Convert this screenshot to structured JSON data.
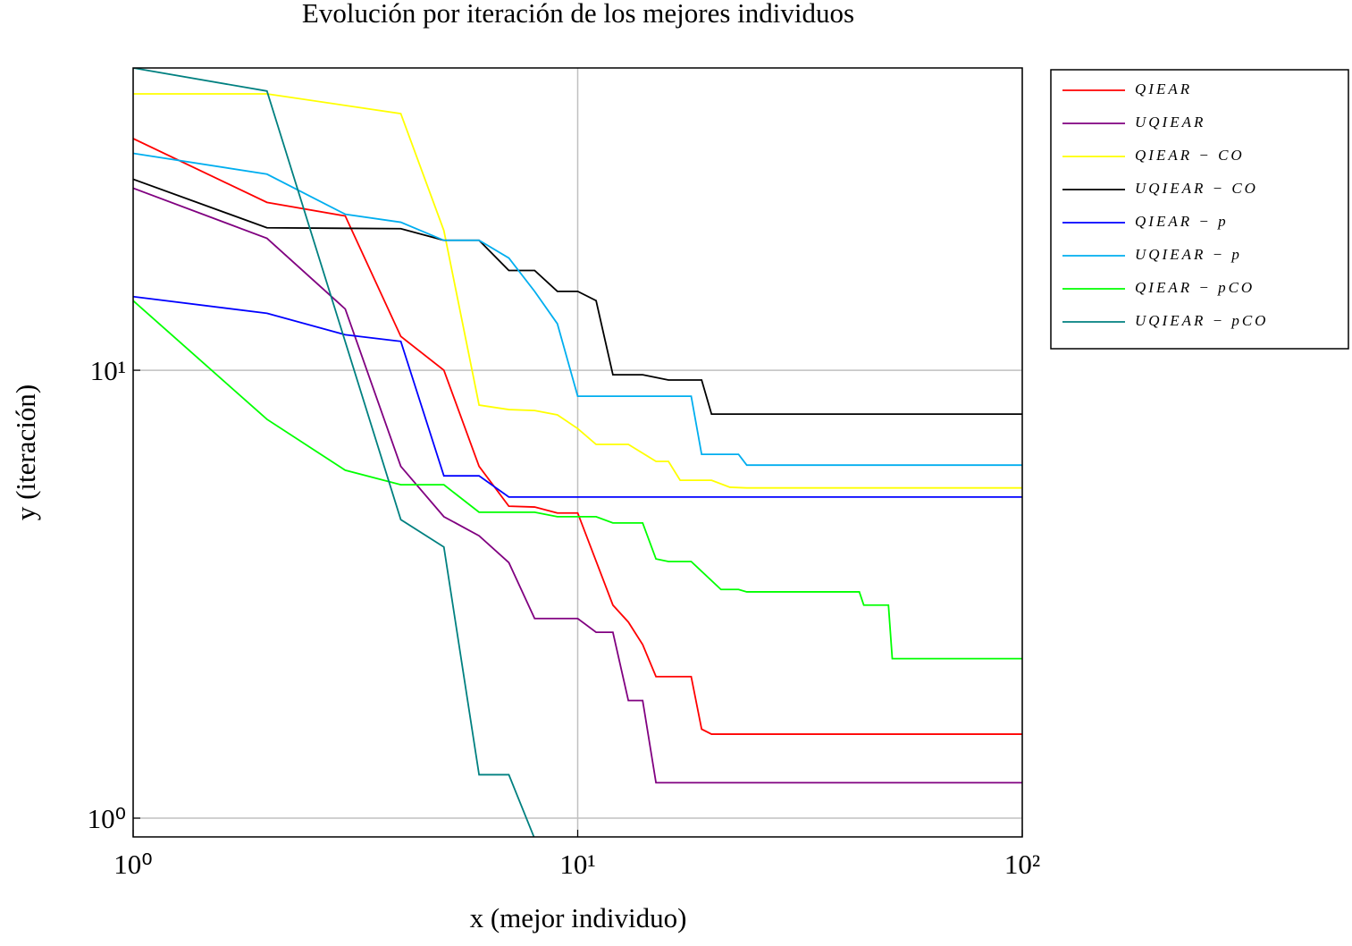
{
  "chart_data": {
    "type": "line",
    "title": "Evolución por iteración de los mejores individuos",
    "x_label": "x (mejor individuo)",
    "y_label": "y (iteración)",
    "x_scale": "log",
    "y_scale": "log",
    "grid": true,
    "legend_position": "outside-right",
    "xlim": [
      1,
      100
    ],
    "ylim": [
      0.908,
      47.3
    ],
    "xticks": [
      {
        "value": 1,
        "label": "10⁰"
      },
      {
        "value": 10,
        "label": "10¹"
      },
      {
        "value": 100,
        "label": "10²"
      }
    ],
    "yticks": [
      {
        "value": 1,
        "label": "10⁰"
      },
      {
        "value": 10,
        "label": "10¹"
      }
    ],
    "series": [
      {
        "name": "QIEAR",
        "color": "#ff0000",
        "x": [
          1,
          2,
          3,
          4,
          5,
          6,
          7,
          8,
          9,
          10,
          12,
          13,
          14,
          15,
          18,
          19,
          20,
          100
        ],
        "values": [
          32.9,
          23.7,
          22.1,
          11.9,
          10.0,
          6.1,
          4.97,
          4.95,
          4.8,
          4.8,
          2.99,
          2.74,
          2.44,
          2.07,
          2.07,
          1.58,
          1.54,
          1.54
        ]
      },
      {
        "name": "UQIEAR",
        "color": "#800080",
        "x": [
          1,
          2,
          3,
          4,
          5,
          6,
          7,
          8,
          10,
          11,
          12,
          13,
          14,
          15,
          100
        ],
        "values": [
          25.5,
          19.7,
          13.7,
          6.1,
          4.71,
          4.27,
          3.72,
          2.79,
          2.79,
          2.6,
          2.6,
          1.83,
          1.83,
          1.2,
          1.2
        ]
      },
      {
        "name": "QIEAR − CO",
        "color": "#ffff00",
        "x": [
          1,
          2,
          4,
          5,
          6,
          7,
          8,
          9,
          10,
          11,
          13,
          15,
          16,
          17,
          20,
          22,
          24,
          100
        ],
        "values": [
          41.4,
          41.4,
          37.4,
          20.5,
          8.36,
          8.17,
          8.13,
          7.95,
          7.41,
          6.83,
          6.83,
          6.26,
          6.26,
          5.68,
          5.68,
          5.48,
          5.46,
          5.46
        ]
      },
      {
        "name": "UQIEAR − CO",
        "color": "#000000",
        "x": [
          1,
          2,
          4,
          5,
          6,
          7,
          8,
          9,
          10,
          11,
          12,
          14,
          16,
          19,
          20,
          100
        ],
        "values": [
          26.7,
          20.8,
          20.7,
          19.5,
          19.5,
          16.7,
          16.7,
          15.0,
          15.0,
          14.3,
          9.77,
          9.77,
          9.51,
          9.51,
          7.98,
          7.98
        ]
      },
      {
        "name": "QIEAR − p",
        "color": "#0000ff",
        "x": [
          1,
          2,
          3,
          4,
          5,
          6,
          7,
          100
        ],
        "values": [
          14.6,
          13.4,
          12.0,
          11.6,
          5.81,
          5.81,
          5.21,
          5.21
        ]
      },
      {
        "name": "UQIEAR − p",
        "color": "#00aeef",
        "x": [
          1,
          2,
          3,
          4,
          5,
          6,
          7,
          8,
          9,
          10,
          18,
          19,
          23,
          24,
          100
        ],
        "values": [
          30.5,
          27.4,
          22.3,
          21.4,
          19.5,
          19.5,
          17.8,
          15.0,
          12.7,
          8.75,
          8.75,
          6.49,
          6.49,
          6.14,
          6.14
        ]
      },
      {
        "name": "QIEAR − pCO",
        "color": "#00ff00",
        "x": [
          1,
          2,
          3,
          4,
          5,
          6,
          8,
          9,
          11,
          12,
          14,
          15,
          16,
          18,
          21,
          23,
          24,
          43,
          44,
          50,
          51,
          100
        ],
        "values": [
          14.3,
          7.77,
          5.98,
          5.55,
          5.55,
          4.82,
          4.82,
          4.71,
          4.71,
          4.56,
          4.56,
          3.79,
          3.74,
          3.74,
          3.24,
          3.24,
          3.2,
          3.2,
          2.99,
          2.99,
          2.27,
          2.27
        ]
      },
      {
        "name": "UQIEAR − pCO",
        "color": "#008080",
        "x": [
          1,
          2,
          4,
          5,
          6,
          7,
          8
        ],
        "values": [
          47.3,
          42.0,
          4.64,
          4.03,
          1.25,
          1.25,
          0.9
        ]
      }
    ]
  }
}
